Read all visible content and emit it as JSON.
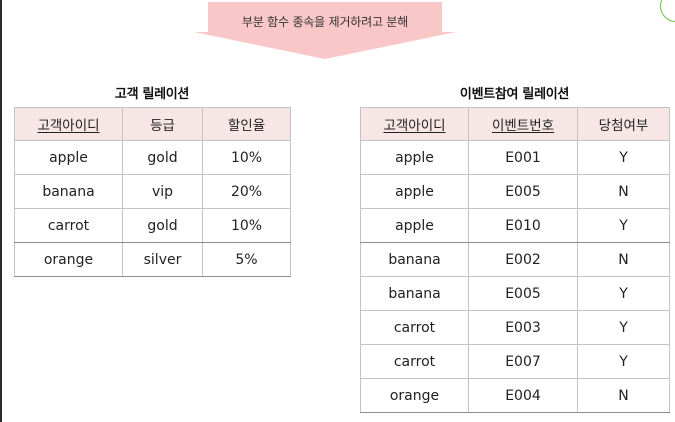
{
  "banner": {
    "text": "부분 함수 종속을 제거하려고 분해"
  },
  "customer_relation": {
    "title": "고객 릴레이션",
    "headers": [
      "고객아이디",
      "등급",
      "할인율"
    ],
    "rows": [
      [
        "apple",
        "gold",
        "10%"
      ],
      [
        "banana",
        "vip",
        "20%"
      ],
      [
        "carrot",
        "gold",
        "10%"
      ],
      [
        "orange",
        "silver",
        "5%"
      ]
    ]
  },
  "event_relation": {
    "title": "이벤트참여 릴레이션",
    "headers": [
      "고객아이디",
      "이벤트번호",
      "당첨여부"
    ],
    "rows": [
      [
        "apple",
        "E001",
        "Y"
      ],
      [
        "apple",
        "E005",
        "N"
      ],
      [
        "apple",
        "E010",
        "Y"
      ],
      [
        "banana",
        "E002",
        "N"
      ],
      [
        "banana",
        "E005",
        "Y"
      ],
      [
        "carrot",
        "E003",
        "Y"
      ],
      [
        "carrot",
        "E007",
        "Y"
      ],
      [
        "orange",
        "E004",
        "N"
      ]
    ]
  },
  "colors": {
    "header_bg": "#f7e6e6",
    "banner_bg": "#f9c7c7",
    "border": "#c4c4c4"
  }
}
